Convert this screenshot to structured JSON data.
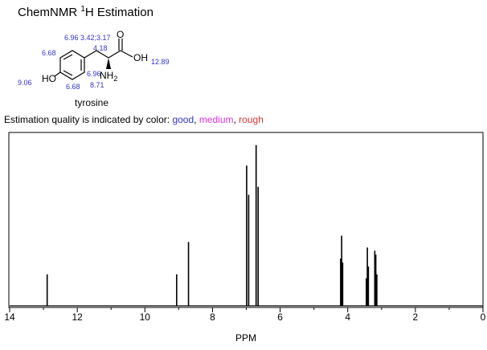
{
  "header": {
    "title": "ChemNMR ",
    "title_sup": "1",
    "title_rest": "H Estimation"
  },
  "molecule": {
    "name": "tyrosine",
    "atoms": {
      "o": "O",
      "oh": "OH",
      "ho": "HO",
      "nh": "NH",
      "nh_sub": "2"
    },
    "shifts": [
      "6.96 3.42;3.17",
      "4.18",
      "6.68",
      "12.89",
      "9.06",
      "6.68",
      "6.96",
      "8.71"
    ]
  },
  "quality_legend": {
    "text": "Estimation quality is indicated by color: ",
    "good": "good",
    "sep": ", ",
    "medium": "medium",
    "rough": "rough",
    "good_color": "#3333cc",
    "medium_color": "#dd33dd",
    "rough_color": "#dd3333"
  },
  "chart_data": {
    "type": "spectrum",
    "xlabel": "PPM",
    "xlim": [
      14,
      0
    ],
    "xticks": [
      14,
      12,
      10,
      8,
      6,
      4,
      2,
      0
    ],
    "x_minor_ticks": [
      13,
      11,
      9,
      7,
      5,
      3,
      1
    ],
    "ylim": [
      0,
      220
    ],
    "series": [
      {
        "color": "#000000",
        "x": [
          12.89,
          9.06,
          8.71,
          6.99,
          6.93,
          6.71,
          6.65,
          4.21,
          4.18,
          4.15,
          3.45,
          3.42,
          3.39,
          3.2,
          3.17,
          3.14
        ],
        "values": [
          40,
          40,
          81,
          178,
          141,
          204,
          151,
          60,
          89,
          55,
          35,
          74,
          50,
          70,
          65,
          40
        ]
      }
    ]
  }
}
